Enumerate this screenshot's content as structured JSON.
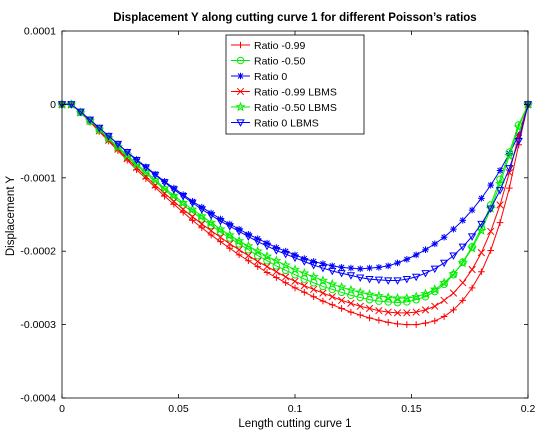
{
  "chart_data": {
    "type": "line",
    "title": "Displacement Y along cutting curve 1 for different Poisson’s ratios",
    "xlabel": "Length cutting curve 1",
    "ylabel": "Displacement Y",
    "xlim": [
      0,
      0.2
    ],
    "ylim": [
      -0.0004,
      0.0001
    ],
    "xticks": [
      0,
      0.05,
      0.1,
      0.15,
      0.2
    ],
    "xtick_labels": [
      "0",
      "0.05",
      "0.1",
      "0.15",
      "0.2"
    ],
    "yticks": [
      0.0001,
      0,
      -0.0001,
      -0.0002,
      -0.0003,
      -0.0004
    ],
    "ytick_labels": [
      "0.0001",
      "0",
      "-0.0001",
      "-0.0002",
      "-0.0003",
      "-0.0004"
    ],
    "grid": false,
    "legend_position": "top-center",
    "x": [
      0,
      0.004,
      0.008,
      0.012,
      0.016,
      0.02,
      0.024,
      0.028,
      0.032,
      0.036,
      0.04,
      0.044,
      0.048,
      0.052,
      0.056,
      0.06,
      0.064,
      0.068,
      0.072,
      0.076,
      0.08,
      0.084,
      0.088,
      0.092,
      0.096,
      0.1,
      0.104,
      0.108,
      0.112,
      0.116,
      0.12,
      0.124,
      0.128,
      0.132,
      0.136,
      0.14,
      0.144,
      0.148,
      0.152,
      0.156,
      0.16,
      0.164,
      0.168,
      0.172,
      0.176,
      0.18,
      0.184,
      0.188,
      0.192,
      0.196,
      0.2
    ],
    "series": [
      {
        "name": "Ratio -0.99",
        "color": "#ff0000",
        "marker": "plus",
        "values": [
          0,
          0,
          -1.1e-05,
          -2.4e-05,
          -3.7e-05,
          -5e-05,
          -6.3e-05,
          -7.6e-05,
          -8.9e-05,
          -0.000101,
          -0.000113,
          -0.000125,
          -0.000136,
          -0.000147,
          -0.000158,
          -0.000168,
          -0.000178,
          -0.000187,
          -0.000196,
          -0.000205,
          -0.000213,
          -0.000221,
          -0.000229,
          -0.000236,
          -0.000243,
          -0.00025,
          -0.000256,
          -0.000262,
          -0.000268,
          -0.000273,
          -0.000278,
          -0.000283,
          -0.000287,
          -0.000291,
          -0.000294,
          -0.000297,
          -0.000299,
          -0.0003,
          -0.0003,
          -0.000298,
          -0.000295,
          -0.000289,
          -0.00028,
          -0.000267,
          -0.00025,
          -0.000228,
          -0.000199,
          -0.000161,
          -0.000114,
          -5.5e-05,
          0
        ]
      },
      {
        "name": "Ratio -0.50",
        "color": "#00ee00",
        "marker": "circle",
        "values": [
          0,
          0,
          -1.1e-05,
          -2.3e-05,
          -3.5e-05,
          -4.7e-05,
          -5.9e-05,
          -7.1e-05,
          -8.3e-05,
          -9.4e-05,
          -0.000105,
          -0.000116,
          -0.000127,
          -0.000137,
          -0.000147,
          -0.000156,
          -0.000165,
          -0.000174,
          -0.000182,
          -0.00019,
          -0.000198,
          -0.000206,
          -0.000213,
          -0.00022,
          -0.000226,
          -0.000232,
          -0.000238,
          -0.000243,
          -0.000248,
          -0.000252,
          -0.000256,
          -0.00026,
          -0.000263,
          -0.000266,
          -0.000268,
          -0.000269,
          -0.00027,
          -0.000269,
          -0.000266,
          -0.000262,
          -0.000255,
          -0.000245,
          -0.000232,
          -0.000215,
          -0.000194,
          -0.000168,
          -0.000137,
          -0.000102,
          -6.5e-05,
          -2.8e-05,
          0
        ]
      },
      {
        "name": "Ratio 0",
        "color": "#0000ff",
        "marker": "star",
        "values": [
          0,
          0,
          -1e-05,
          -2.1e-05,
          -3.2e-05,
          -4.3e-05,
          -5.4e-05,
          -6.5e-05,
          -7.5e-05,
          -8.5e-05,
          -9.5e-05,
          -0.000105,
          -0.000114,
          -0.000123,
          -0.000132,
          -0.00014,
          -0.000148,
          -0.000156,
          -0.000163,
          -0.00017,
          -0.000177,
          -0.000183,
          -0.000189,
          -0.000195,
          -0.0002,
          -0.000205,
          -0.00021,
          -0.000214,
          -0.000217,
          -0.00022,
          -0.000222,
          -0.000223,
          -0.000224,
          -0.000223,
          -0.000222,
          -0.00022,
          -0.000216,
          -0.000211,
          -0.000205,
          -0.000198,
          -0.00019,
          -0.000181,
          -0.00017,
          -0.000158,
          -0.000144,
          -0.000128,
          -0.00011,
          -9e-05,
          -6.7e-05,
          -4.2e-05,
          0
        ]
      },
      {
        "name": "Ratio -0.99 LBMS",
        "color": "#ff0000",
        "marker": "x",
        "values": [
          0,
          0,
          -1.1e-05,
          -2.3e-05,
          -3.6e-05,
          -4.9e-05,
          -6.1e-05,
          -7.4e-05,
          -8.6e-05,
          -9.8e-05,
          -0.00011,
          -0.000121,
          -0.000132,
          -0.000143,
          -0.000153,
          -0.000163,
          -0.000172,
          -0.000181,
          -0.00019,
          -0.000198,
          -0.000206,
          -0.000214,
          -0.000221,
          -0.000228,
          -0.000235,
          -0.000241,
          -0.000247,
          -0.000252,
          -0.000257,
          -0.000262,
          -0.000267,
          -0.000271,
          -0.000275,
          -0.000278,
          -0.000281,
          -0.000283,
          -0.000284,
          -0.000284,
          -0.000283,
          -0.00028,
          -0.000275,
          -0.000267,
          -0.000257,
          -0.000243,
          -0.000225,
          -0.000202,
          -0.000173,
          -0.000137,
          -9.3e-05,
          -4.3e-05,
          0
        ]
      },
      {
        "name": "Ratio -0.50 LBMS",
        "color": "#00ee00",
        "marker": "pentagram",
        "values": [
          0,
          0,
          -1.1e-05,
          -2.2e-05,
          -3.4e-05,
          -4.6e-05,
          -5.8e-05,
          -6.9e-05,
          -8.1e-05,
          -9.2e-05,
          -0.000103,
          -0.000114,
          -0.000124,
          -0.000134,
          -0.000143,
          -0.000152,
          -0.000161,
          -0.00017,
          -0.000178,
          -0.000186,
          -0.000193,
          -0.0002,
          -0.000207,
          -0.000213,
          -0.000219,
          -0.000225,
          -0.00023,
          -0.000235,
          -0.00024,
          -0.000245,
          -0.000249,
          -0.000253,
          -0.000256,
          -0.000259,
          -0.000261,
          -0.000263,
          -0.000264,
          -0.000264,
          -0.000262,
          -0.000258,
          -0.000252,
          -0.000243,
          -0.000231,
          -0.000216,
          -0.000196,
          -0.000172,
          -0.000142,
          -0.000108,
          -7e-05,
          -3.1e-05,
          0
        ]
      },
      {
        "name": "Ratio 0 LBMS",
        "color": "#0000ff",
        "marker": "triangle-down",
        "values": [
          0,
          0,
          -1e-05,
          -2.1e-05,
          -3.2e-05,
          -4.3e-05,
          -5.4e-05,
          -6.5e-05,
          -7.6e-05,
          -8.6e-05,
          -9.6e-05,
          -0.000106,
          -0.000116,
          -0.000125,
          -0.000134,
          -0.000143,
          -0.000151,
          -0.000159,
          -0.000166,
          -0.000173,
          -0.00018,
          -0.000187,
          -0.000193,
          -0.000199,
          -0.000204,
          -0.000209,
          -0.000214,
          -0.000219,
          -0.000223,
          -0.000227,
          -0.00023,
          -0.000233,
          -0.000236,
          -0.000238,
          -0.000239,
          -0.00024,
          -0.00024,
          -0.000238,
          -0.000235,
          -0.00023,
          -0.000224,
          -0.000216,
          -0.000206,
          -0.000194,
          -0.00018,
          -0.000163,
          -0.000142,
          -0.000117,
          -8.7e-05,
          -5e-05,
          0
        ]
      }
    ]
  }
}
